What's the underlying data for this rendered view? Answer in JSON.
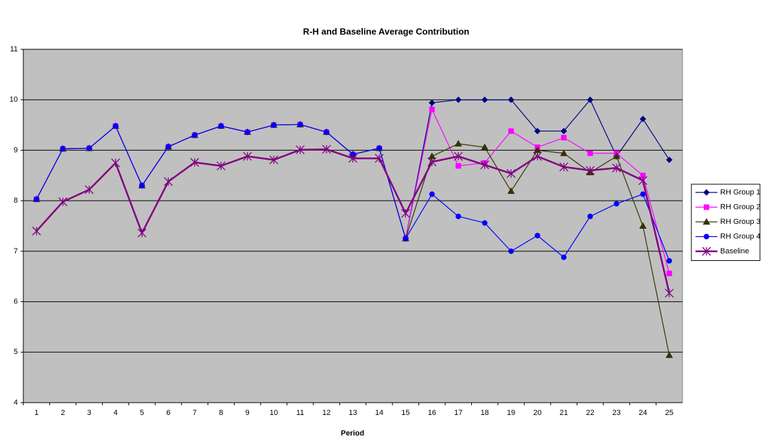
{
  "chart_data": {
    "type": "line",
    "title": "R-H and Baseline Average Contribution",
    "x_label": "Period",
    "categories": [
      "1",
      "2",
      "3",
      "4",
      "5",
      "6",
      "7",
      "8",
      "9",
      "10",
      "11",
      "12",
      "13",
      "14",
      "15",
      "16",
      "17",
      "18",
      "19",
      "20",
      "21",
      "22",
      "23",
      "24",
      "25"
    ],
    "ylim": [
      4,
      11
    ],
    "yticks": [
      4,
      5,
      6,
      7,
      8,
      9,
      10,
      11
    ],
    "grid": true,
    "legend": "right",
    "series": [
      {
        "name": "RH Group 1",
        "color": "#000080",
        "marker": "diamond",
        "values": [
          8.03,
          9.03,
          9.04,
          9.48,
          8.3,
          9.07,
          9.3,
          9.48,
          9.36,
          9.5,
          9.51,
          9.36,
          8.92,
          9.04,
          7.25,
          9.94,
          10,
          10,
          10,
          9.38,
          9.38,
          10,
          8.88,
          9.62,
          8.81
        ]
      },
      {
        "name": "RH Group 2",
        "color": "#ff00ff",
        "marker": "square",
        "values": [
          8.03,
          9.03,
          9.04,
          9.48,
          8.3,
          9.07,
          9.3,
          9.48,
          9.36,
          9.5,
          9.51,
          9.36,
          8.92,
          9.04,
          7.25,
          9.81,
          8.69,
          8.75,
          9.38,
          9.06,
          9.25,
          8.94,
          8.94,
          8.5,
          6.56
        ]
      },
      {
        "name": "RH Group 3",
        "color": "#333300",
        "marker": "triangle",
        "values": [
          8.03,
          9.03,
          9.04,
          9.48,
          8.3,
          9.07,
          9.3,
          9.48,
          9.36,
          9.5,
          9.51,
          9.36,
          8.92,
          9.04,
          7.25,
          8.88,
          9.13,
          9.06,
          8.19,
          9.0,
          8.94,
          8.56,
          8.88,
          7.5,
          4.94
        ]
      },
      {
        "name": "RH Group 4",
        "color": "#0000ff",
        "marker": "circle",
        "values": [
          8.03,
          9.03,
          9.04,
          9.48,
          8.3,
          9.07,
          9.3,
          9.48,
          9.36,
          9.5,
          9.51,
          9.36,
          8.92,
          9.04,
          7.25,
          8.13,
          7.69,
          7.56,
          7.0,
          7.31,
          6.88,
          7.69,
          7.94,
          8.13,
          6.81
        ]
      },
      {
        "name": "Baseline",
        "color": "#800080",
        "marker": "star",
        "values": [
          7.4,
          7.98,
          8.22,
          8.75,
          7.36,
          8.38,
          8.76,
          8.69,
          8.88,
          8.81,
          9.01,
          9.02,
          8.84,
          8.84,
          7.75,
          8.77,
          8.88,
          8.71,
          8.54,
          8.88,
          8.67,
          8.6,
          8.65,
          8.4,
          6.17
        ]
      }
    ]
  }
}
